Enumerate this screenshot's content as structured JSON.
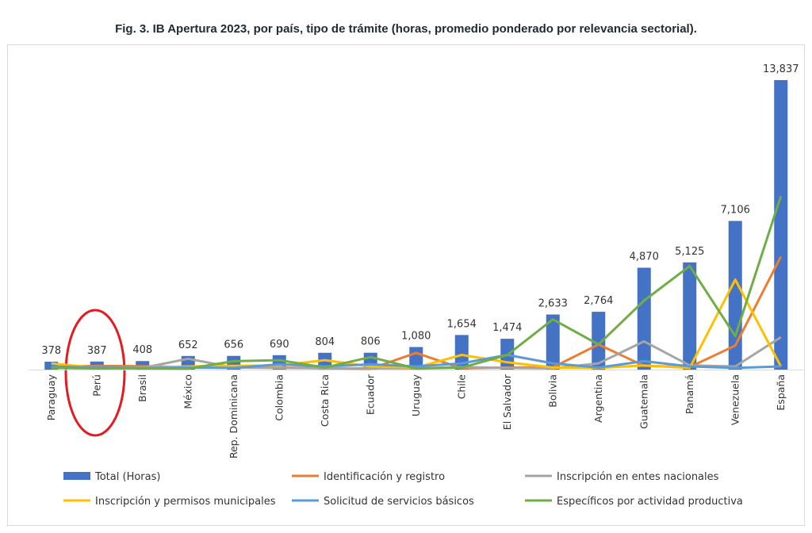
{
  "chart_data": {
    "type": "bar",
    "title": "Fig. 3. IB Apertura 2023, por país, tipo de trámite (horas, promedio ponderado por relevancia sectorial).",
    "categories": [
      "Paraguay",
      "Perú",
      "Brasil",
      "México",
      "Rep. Dominicana",
      "Colombia",
      "Costa Rica",
      "Ecuador",
      "Uruguay",
      "Chile",
      "El Salvador",
      "Bolivia",
      "Argentina",
      "Guatemala",
      "Panamá",
      "Venezuela",
      "España"
    ],
    "bar_series": {
      "name": "Total (Horas)",
      "color": "#4472c4",
      "values": [
        378,
        387,
        408,
        652,
        656,
        690,
        804,
        806,
        1080,
        1654,
        1474,
        2633,
        2764,
        4870,
        5125,
        7106,
        13837
      ],
      "labels": [
        "378",
        "387",
        "408",
        "652",
        "656",
        "690",
        "804",
        "806",
        "1,080",
        "1,654",
        "1,474",
        "2,633",
        "2,764",
        "4,870",
        "5,125",
        "7,106",
        "13,837"
      ]
    },
    "line_series": [
      {
        "name": "Identificación y registro",
        "color": "#ed7d31",
        "values": [
          120,
          180,
          160,
          120,
          110,
          100,
          60,
          40,
          800,
          60,
          100,
          110,
          1200,
          180,
          120,
          1150,
          5400
        ]
      },
      {
        "name": "Inscripción en entes nacionales",
        "color": "#a5a5a5",
        "values": [
          80,
          60,
          80,
          520,
          100,
          80,
          70,
          60,
          60,
          120,
          80,
          60,
          300,
          1350,
          200,
          150,
          1550
        ]
      },
      {
        "name": "Inscripción y permisos municipales",
        "color": "#ffc000",
        "values": [
          300,
          80,
          100,
          150,
          180,
          200,
          450,
          150,
          100,
          700,
          350,
          100,
          80,
          200,
          80,
          4300,
          150
        ]
      },
      {
        "name": "Solicitud de servicios básicos",
        "color": "#5b9bd5",
        "values": [
          150,
          100,
          80,
          100,
          80,
          250,
          150,
          250,
          150,
          300,
          700,
          300,
          100,
          400,
          150,
          80,
          150
        ]
      },
      {
        "name": "Específicos por actividad productiva",
        "color": "#70ad47",
        "values": [
          80,
          60,
          60,
          50,
          400,
          450,
          100,
          600,
          50,
          100,
          700,
          2400,
          1200,
          3300,
          4950,
          1600,
          8300
        ]
      }
    ],
    "ylim": [
      0,
      14000
    ],
    "legend_position": "bottom",
    "grid": false
  },
  "legend": {
    "row1": [
      "Total (Horas)",
      "Identificación y registro",
      "Inscripción en entes nacionales"
    ],
    "row2": [
      "Inscripción y permisos municipales",
      "Solicitud de servicios básicos",
      "Específicos por actividad productiva"
    ]
  }
}
